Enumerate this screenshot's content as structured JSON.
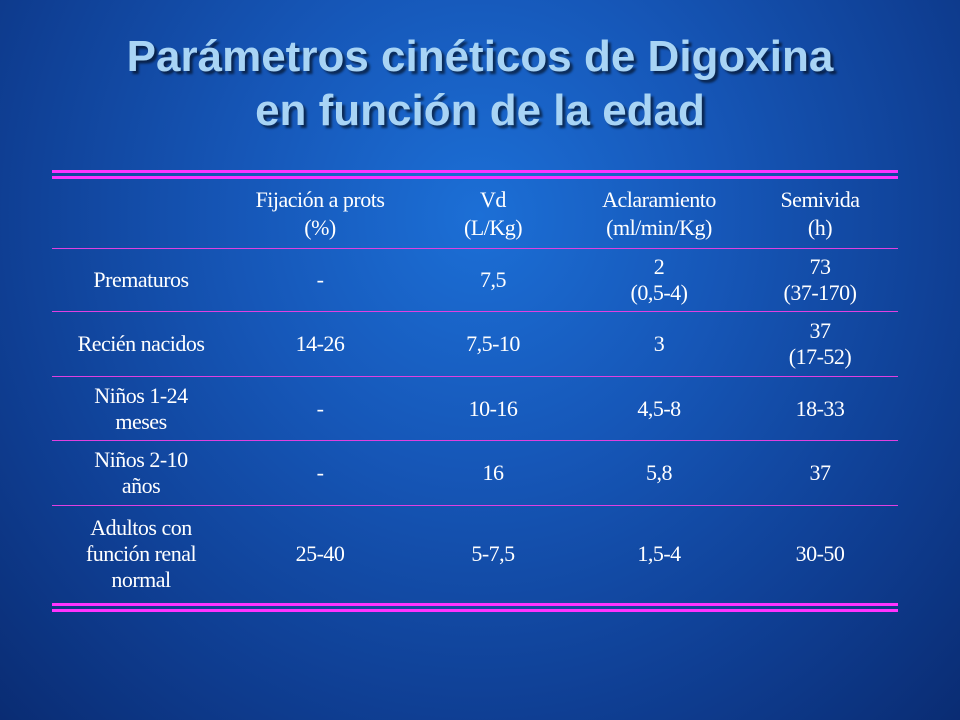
{
  "slide": {
    "title_line1": "Parámetros cinéticos de Digoxina",
    "title_line2": "en función de la edad"
  },
  "table": {
    "headers": [
      {
        "line1": "",
        "line2": ""
      },
      {
        "line1": "Fijación a prots",
        "line2": "(%)"
      },
      {
        "line1": "Vd",
        "line2": "(L/Kg)"
      },
      {
        "line1": "Aclaramiento",
        "line2": "(ml/min/Kg)"
      },
      {
        "line1": "Semivida",
        "line2": "(h)"
      }
    ],
    "rows": [
      [
        {
          "line1": "Prematuros",
          "line2": ""
        },
        {
          "line1": "-",
          "line2": ""
        },
        {
          "line1": "7,5",
          "line2": ""
        },
        {
          "line1": "2",
          "line2": "(0,5-4)"
        },
        {
          "line1": "73",
          "line2": "(37-170)"
        }
      ],
      [
        {
          "line1": "Recién nacidos",
          "line2": ""
        },
        {
          "line1": "14-26",
          "line2": ""
        },
        {
          "line1": "7,5-10",
          "line2": ""
        },
        {
          "line1": "3",
          "line2": ""
        },
        {
          "line1": "37",
          "line2": "(17-52)"
        }
      ],
      [
        {
          "line1": "Niños 1-24",
          "line2": "meses"
        },
        {
          "line1": "-",
          "line2": ""
        },
        {
          "line1": "10-16",
          "line2": ""
        },
        {
          "line1": "4,5-8",
          "line2": ""
        },
        {
          "line1": "18-33",
          "line2": ""
        }
      ],
      [
        {
          "line1": "Niños 2-10",
          "line2": "años"
        },
        {
          "line1": "-",
          "line2": ""
        },
        {
          "line1": "16",
          "line2": ""
        },
        {
          "line1": "5,8",
          "line2": ""
        },
        {
          "line1": "37",
          "line2": ""
        }
      ],
      [
        {
          "line1": "Adultos con",
          "line2": "función renal",
          "line3": "normal"
        },
        {
          "line1": "25-40",
          "line2": ""
        },
        {
          "line1": "5-7,5",
          "line2": ""
        },
        {
          "line1": "1,5-4",
          "line2": ""
        },
        {
          "line1": "30-50",
          "line2": ""
        }
      ]
    ]
  },
  "colors": {
    "background": "#1657b8",
    "title_text": "#a8d4f5",
    "rule_accent": "#ff33ff",
    "cell_text": "#ffffff"
  }
}
